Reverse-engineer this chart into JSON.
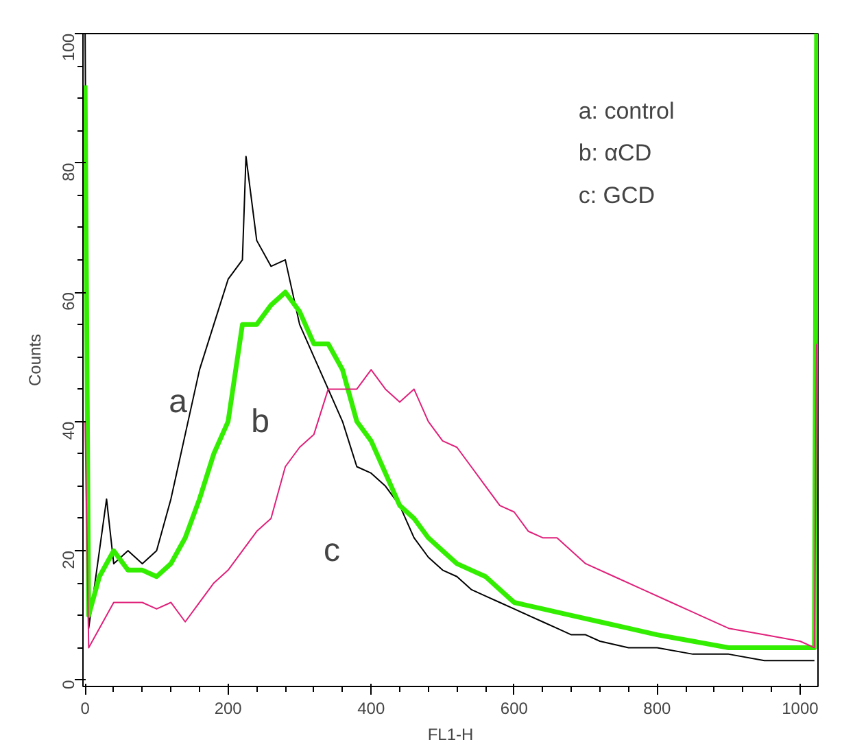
{
  "chart_data": {
    "type": "line",
    "xlabel": "FL1-H",
    "ylabel": "Counts",
    "xlim": [
      -3,
      1025
    ],
    "ylim": [
      -1,
      100
    ],
    "xticks": [
      0,
      200,
      400,
      600,
      800,
      1000
    ],
    "yticks": [
      0,
      20,
      40,
      60,
      80,
      100
    ],
    "grid": false,
    "marker": "none",
    "line_style": "solid",
    "series": [
      {
        "color": "#000000",
        "x": [
          0,
          5,
          20,
          30,
          40,
          60,
          80,
          100,
          120,
          140,
          160,
          180,
          200,
          220,
          225,
          240,
          260,
          280,
          300,
          320,
          340,
          360,
          380,
          400,
          420,
          440,
          460,
          480,
          500,
          520,
          540,
          560,
          580,
          600,
          620,
          640,
          660,
          680,
          700,
          720,
          760,
          800,
          850,
          900,
          950,
          1000,
          1020
        ],
        "values": [
          100,
          8,
          20,
          28,
          18,
          20,
          18,
          20,
          28,
          38,
          48,
          55,
          62,
          65,
          81,
          68,
          64,
          65,
          55,
          50,
          45,
          40,
          33,
          32,
          30,
          27,
          22,
          19,
          17,
          16,
          14,
          13,
          12,
          11,
          10,
          9,
          8,
          7,
          7,
          6,
          5,
          5,
          4,
          4,
          3,
          3,
          3
        ]
      },
      {
        "color": "#33ee00",
        "x": [
          0,
          5,
          20,
          40,
          60,
          80,
          100,
          120,
          140,
          160,
          180,
          200,
          220,
          240,
          260,
          280,
          300,
          320,
          340,
          360,
          380,
          400,
          420,
          440,
          460,
          480,
          500,
          520,
          540,
          560,
          580,
          600,
          640,
          680,
          720,
          760,
          800,
          850,
          900,
          950,
          1000,
          1020,
          1023
        ],
        "values": [
          92,
          10,
          16,
          20,
          17,
          17,
          16,
          18,
          22,
          28,
          35,
          40,
          55,
          55,
          58,
          60,
          57,
          52,
          52,
          48,
          40,
          37,
          32,
          27,
          25,
          22,
          20,
          18,
          17,
          16,
          14,
          12,
          11,
          10,
          9,
          8,
          7,
          6,
          5,
          5,
          5,
          5,
          100
        ]
      },
      {
        "color": "#e0207a",
        "x": [
          0,
          5,
          20,
          40,
          60,
          80,
          100,
          120,
          140,
          160,
          180,
          200,
          220,
          240,
          260,
          280,
          300,
          320,
          340,
          360,
          380,
          400,
          420,
          440,
          460,
          480,
          500,
          520,
          540,
          560,
          580,
          600,
          620,
          640,
          660,
          700,
          740,
          780,
          820,
          860,
          900,
          950,
          1000,
          1020,
          1023
        ],
        "values": [
          40,
          5,
          8,
          12,
          12,
          12,
          11,
          12,
          9,
          12,
          15,
          17,
          20,
          23,
          25,
          33,
          36,
          38,
          45,
          45,
          45,
          48,
          45,
          43,
          45,
          40,
          37,
          36,
          33,
          30,
          27,
          26,
          23,
          22,
          22,
          18,
          16,
          14,
          12,
          10,
          8,
          7,
          6,
          5,
          52
        ]
      }
    ],
    "annotations": [
      "a",
      "b",
      "c",
      "a: control",
      "b: αCD",
      "c: GCD"
    ]
  }
}
